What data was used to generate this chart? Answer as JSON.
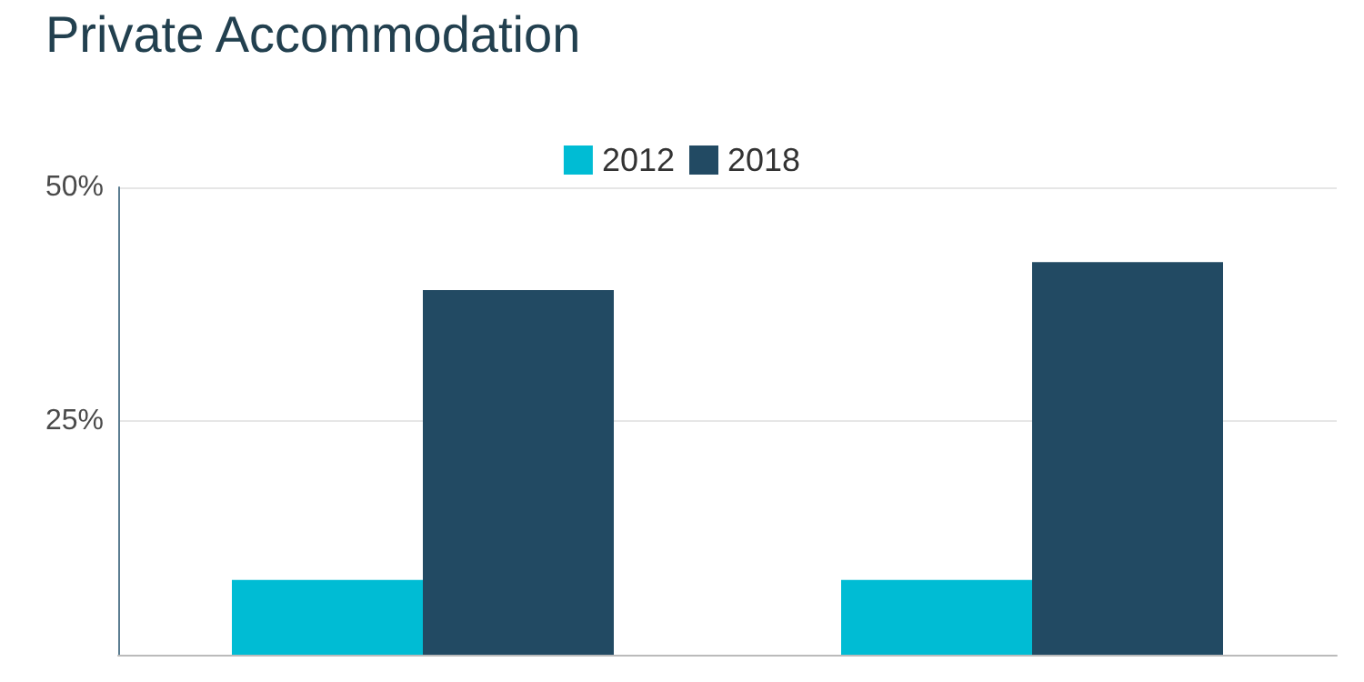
{
  "chart_data": {
    "type": "bar",
    "title": "Private Accommodation",
    "categories": [
      null,
      null
    ],
    "series": [
      {
        "name": "2012",
        "color": "#00bcd4",
        "values": [
          8,
          8
        ]
      },
      {
        "name": "2018",
        "color": "#224a63",
        "values": [
          39,
          42
        ]
      }
    ],
    "ylim": [
      0,
      50
    ],
    "yticks": [
      {
        "value": 25,
        "label": "25%"
      },
      {
        "value": 50,
        "label": "50%"
      }
    ],
    "grid": "y",
    "legend": "top"
  }
}
